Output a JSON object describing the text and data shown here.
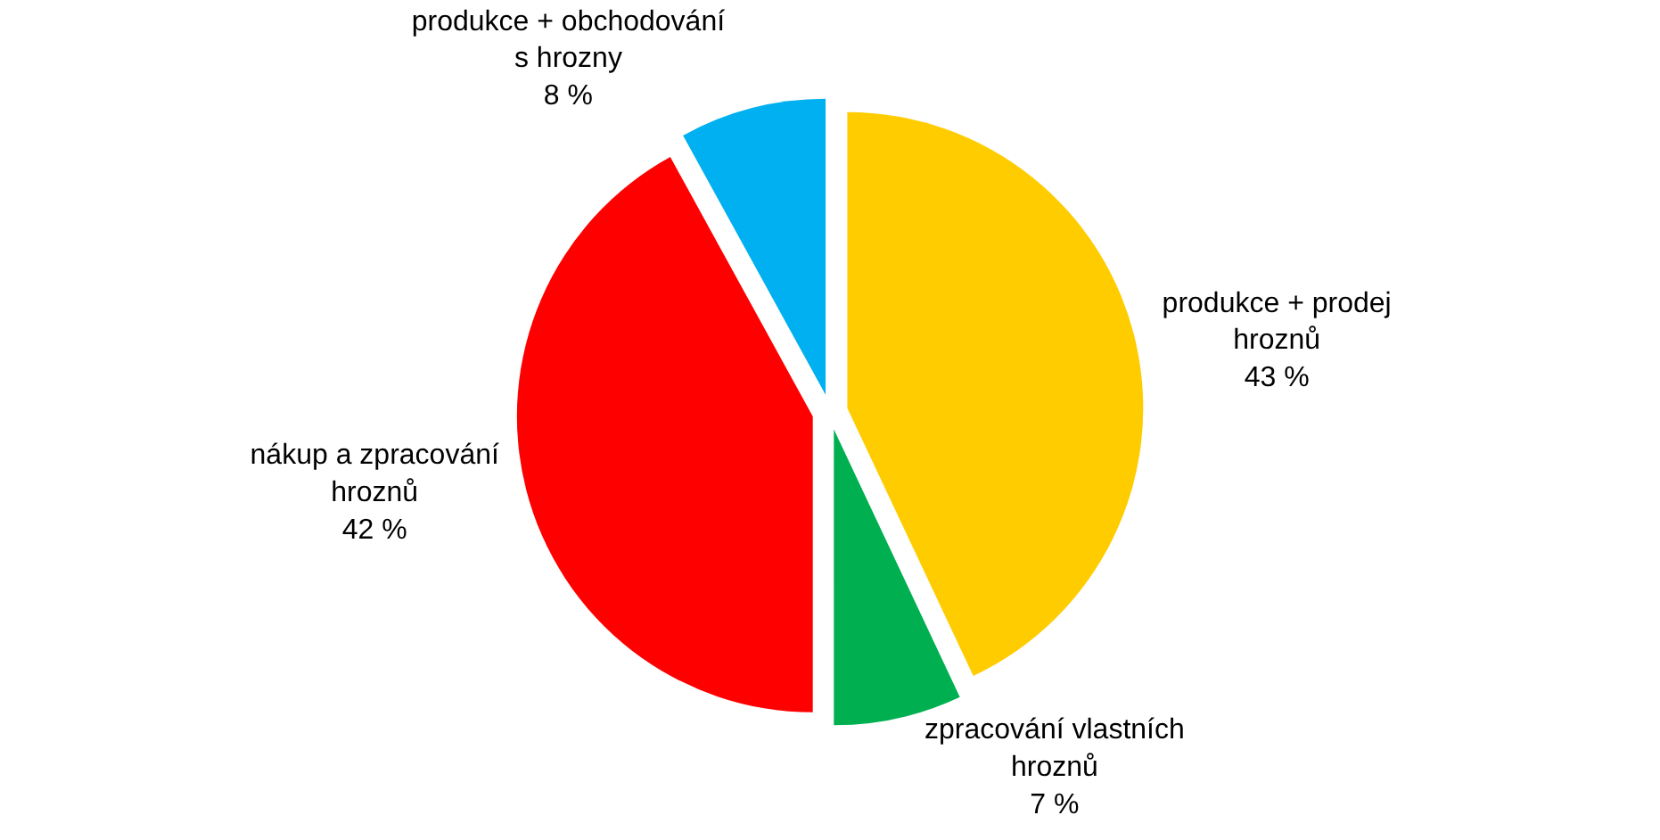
{
  "chart_data": {
    "type": "pie",
    "categories": [
      "produkce + prodej hroznů",
      "zpracování vlastních hroznů",
      "nákup a zpracování hroznů",
      "produkce + obchodování s hrozny"
    ],
    "values": [
      43,
      7,
      42,
      8
    ],
    "value_labels": [
      "43 %",
      "7 %",
      "42 %",
      "8 %"
    ],
    "colors": [
      "#ffcc00",
      "#00b050",
      "#ff0000",
      "#00b0f0"
    ],
    "legend": false
  }
}
